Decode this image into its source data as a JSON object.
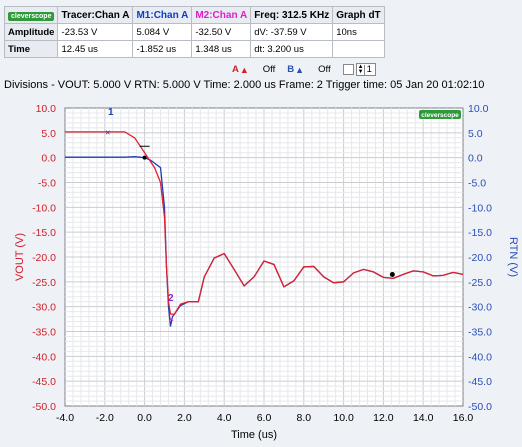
{
  "measurements": {
    "logo_text": "cleverscope",
    "headers": [
      "Tracer:Chan A",
      "M1:Chan A",
      "M2:Chan A",
      "Freq: 312.5 KHz",
      "Graph dT"
    ],
    "rows": [
      {
        "label": "Amplitude",
        "cells": [
          "-23.53 V",
          "5.084 V",
          "-32.50 V",
          "dV: -37.59 V",
          "10ns"
        ]
      },
      {
        "label": "Time",
        "cells": [
          "12.45 us",
          "-1.852 us",
          "1.348 us",
          "dt:  3.200 us",
          ""
        ]
      }
    ]
  },
  "controls": {
    "a_label": "A",
    "a_state": "Off",
    "b_label": "B",
    "b_state": "Off",
    "stepper_value": "1"
  },
  "status_bar": {
    "text": "Divisions -  VOUT: 5.000 V    RTN: 5.000 V    Time: 2.000 us  Frame: 2      Trigger time: 05 Jan 20 01:02:10"
  },
  "plot": {
    "logo_text": "cleverscope",
    "marker1_label": "1",
    "marker2_label": "2"
  },
  "chart_data": {
    "type": "line",
    "xlabel": "Time (us)",
    "ylabel_left": "VOUT (V)",
    "ylabel_right": "RTN (V)",
    "xlim": [
      -4,
      16
    ],
    "ylim_left": [
      -50,
      10
    ],
    "ylim_right": [
      -50,
      10
    ],
    "x_ticks": [
      "-4.0",
      "-2.0",
      "0.0",
      "2.0",
      "4.0",
      "6.0",
      "8.0",
      "10.0",
      "12.0",
      "14.0",
      "16.0"
    ],
    "y_ticks_left": [
      "10.0",
      "5.0",
      "0.0",
      "-5.0",
      "-10.0",
      "-15.0",
      "-20.0",
      "-25.0",
      "-30.0",
      "-35.0",
      "-40.0",
      "-45.0",
      "-50.0"
    ],
    "y_ticks_right": [
      "10.0",
      "5.0",
      "0.0",
      "-5.0",
      "-10.0",
      "-15.0",
      "-20.0",
      "-25.0",
      "-30.0",
      "-35.0",
      "-40.0",
      "-45.0",
      "-50.0"
    ],
    "grid": true,
    "colors": {
      "vout": "#e0202e",
      "rtn": "#1f3fb0",
      "marker_m2": "#e01ec8",
      "tick_left": "#d0202a",
      "tick_right": "#2a4fb8"
    },
    "series": [
      {
        "name": "VOUT",
        "axis": "left",
        "x": [
          -4.0,
          -1.0,
          -0.5,
          0.0,
          0.5,
          0.8,
          1.0,
          1.1,
          1.2,
          1.3,
          1.5,
          1.8,
          2.2,
          2.7,
          3.0,
          3.5,
          4.0,
          4.5,
          5.0,
          5.5,
          6.0,
          6.5,
          7.0,
          7.5,
          8.0,
          8.5,
          9.0,
          9.5,
          10.0,
          10.5,
          11.0,
          11.5,
          12.0,
          12.5,
          13.0,
          13.5,
          14.0,
          14.5,
          15.0,
          15.5,
          16.0
        ],
        "y": [
          5.2,
          5.2,
          4.0,
          1.0,
          -2.0,
          -5.0,
          -12.0,
          -22.0,
          -29.0,
          -31.5,
          -31.5,
          -29.5,
          -29.0,
          -29.0,
          -24.0,
          -20.2,
          -19.3,
          -22.5,
          -25.8,
          -24.0,
          -20.8,
          -21.5,
          -26.0,
          -24.8,
          -22.0,
          -21.9,
          -24.0,
          -25.2,
          -25.0,
          -23.2,
          -22.5,
          -23.0,
          -24.1,
          -24.3,
          -23.5,
          -22.8,
          -23.0,
          -23.8,
          -23.7,
          -23.1,
          -23.5
        ]
      },
      {
        "name": "RTN",
        "axis": "right",
        "x": [
          -4.0,
          -1.0,
          -0.5,
          0.0,
          0.3,
          0.8,
          1.0,
          1.1,
          1.2,
          1.3,
          1.4,
          1.5,
          1.8,
          2.2,
          2.7,
          3.0,
          3.5,
          4.0,
          4.5,
          5.0,
          5.5,
          6.0,
          6.5,
          7.0,
          7.5,
          8.0,
          8.5,
          9.0,
          9.5,
          10.0,
          10.5,
          11.0,
          11.5,
          12.0,
          12.5,
          13.0,
          13.5,
          14.0,
          14.5,
          15.0,
          15.5,
          16.0
        ],
        "y": [
          0.1,
          0.1,
          0.2,
          0.0,
          -0.5,
          -2.0,
          -10.0,
          -22.0,
          -30.0,
          -34.0,
          -32.0,
          -31.5,
          -29.8,
          -29.0,
          -29.0,
          -24.0,
          -20.2,
          -19.3,
          -22.5,
          -25.8,
          -24.0,
          -20.8,
          -21.5,
          -26.0,
          -24.8,
          -22.0,
          -21.9,
          -24.0,
          -25.2,
          -25.0,
          -23.2,
          -22.5,
          -23.0,
          -24.1,
          -24.3,
          -23.5,
          -22.8,
          -23.0,
          -23.8,
          -23.7,
          -23.1,
          -23.5
        ]
      }
    ],
    "markers": [
      {
        "label": "1",
        "x": -1.852,
        "y": 5.084
      },
      {
        "label": "2",
        "x": 1.348,
        "y": -32.5
      },
      {
        "label": "",
        "x": 12.45,
        "y": -23.53
      }
    ]
  }
}
